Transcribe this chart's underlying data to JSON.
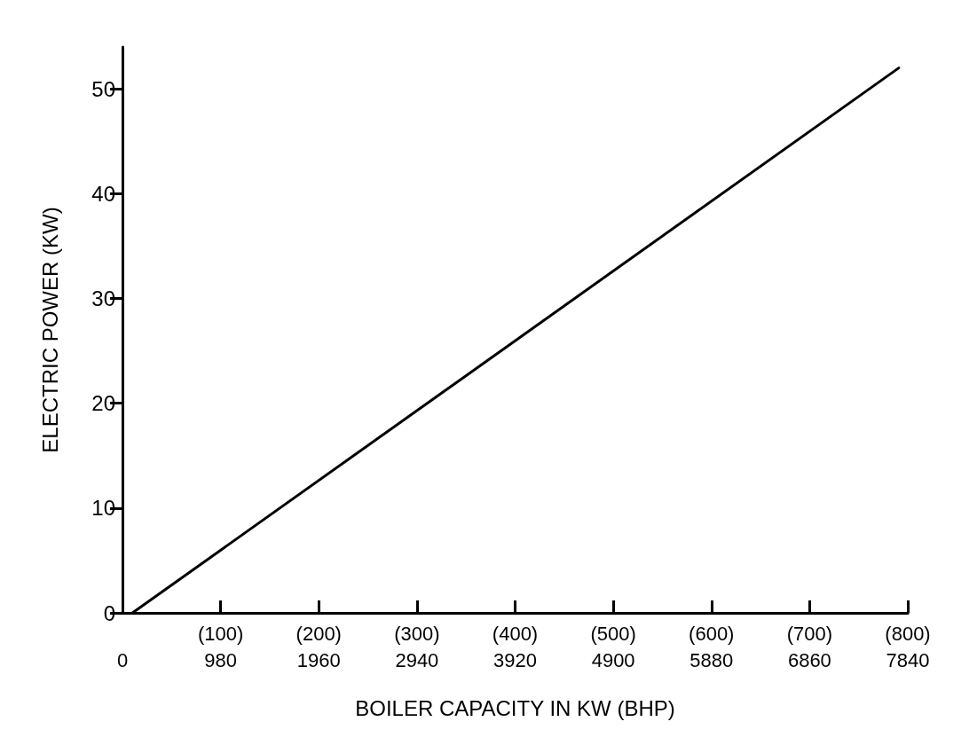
{
  "chart_data": {
    "type": "line",
    "xlabel": "BOILER CAPACITY IN KW (BHP)",
    "ylabel": "ELECTRIC POWER (KW)",
    "x": [
      100,
      7750
    ],
    "series": [
      {
        "color": "#000000",
        "values": [
          0,
          52
        ]
      }
    ],
    "xlim": [
      0,
      7840
    ],
    "ylim": [
      0,
      54
    ],
    "xticks": [
      0,
      980,
      1960,
      2940,
      3920,
      4900,
      5880,
      6860,
      7840
    ],
    "x2lim": [
      0,
      800
    ],
    "x2ticks": [
      {
        "value": 100,
        "label": "(100)"
      },
      {
        "value": 200,
        "label": "(200)"
      },
      {
        "value": 300,
        "label": "(300)"
      },
      {
        "value": 400,
        "label": "(400)"
      },
      {
        "value": 500,
        "label": "(500)"
      },
      {
        "value": 600,
        "label": "(600)"
      },
      {
        "value": 700,
        "label": "(700)"
      },
      {
        "value": 800,
        "label": "(800)"
      }
    ],
    "yticks": [
      0,
      10,
      20,
      30,
      40,
      50
    ],
    "grid": false,
    "marker": "none",
    "line_style": "solid"
  }
}
